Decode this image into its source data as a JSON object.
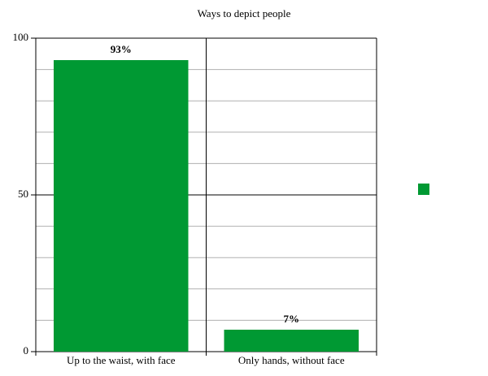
{
  "chart_data": {
    "type": "bar",
    "title": "Ways to depict people",
    "categories": [
      "Up to the waist, with face",
      "Only hands, without face"
    ],
    "series": [
      {
        "color": "#009933",
        "values": [
          93,
          7
        ],
        "value_labels": [
          "93%",
          "7%"
        ]
      }
    ],
    "ylim": [
      0,
      100
    ],
    "yticks": [
      0,
      50,
      100
    ],
    "yminor": [
      10,
      20,
      30,
      40,
      60,
      70,
      80,
      90
    ],
    "grid": true,
    "legend": "right"
  }
}
